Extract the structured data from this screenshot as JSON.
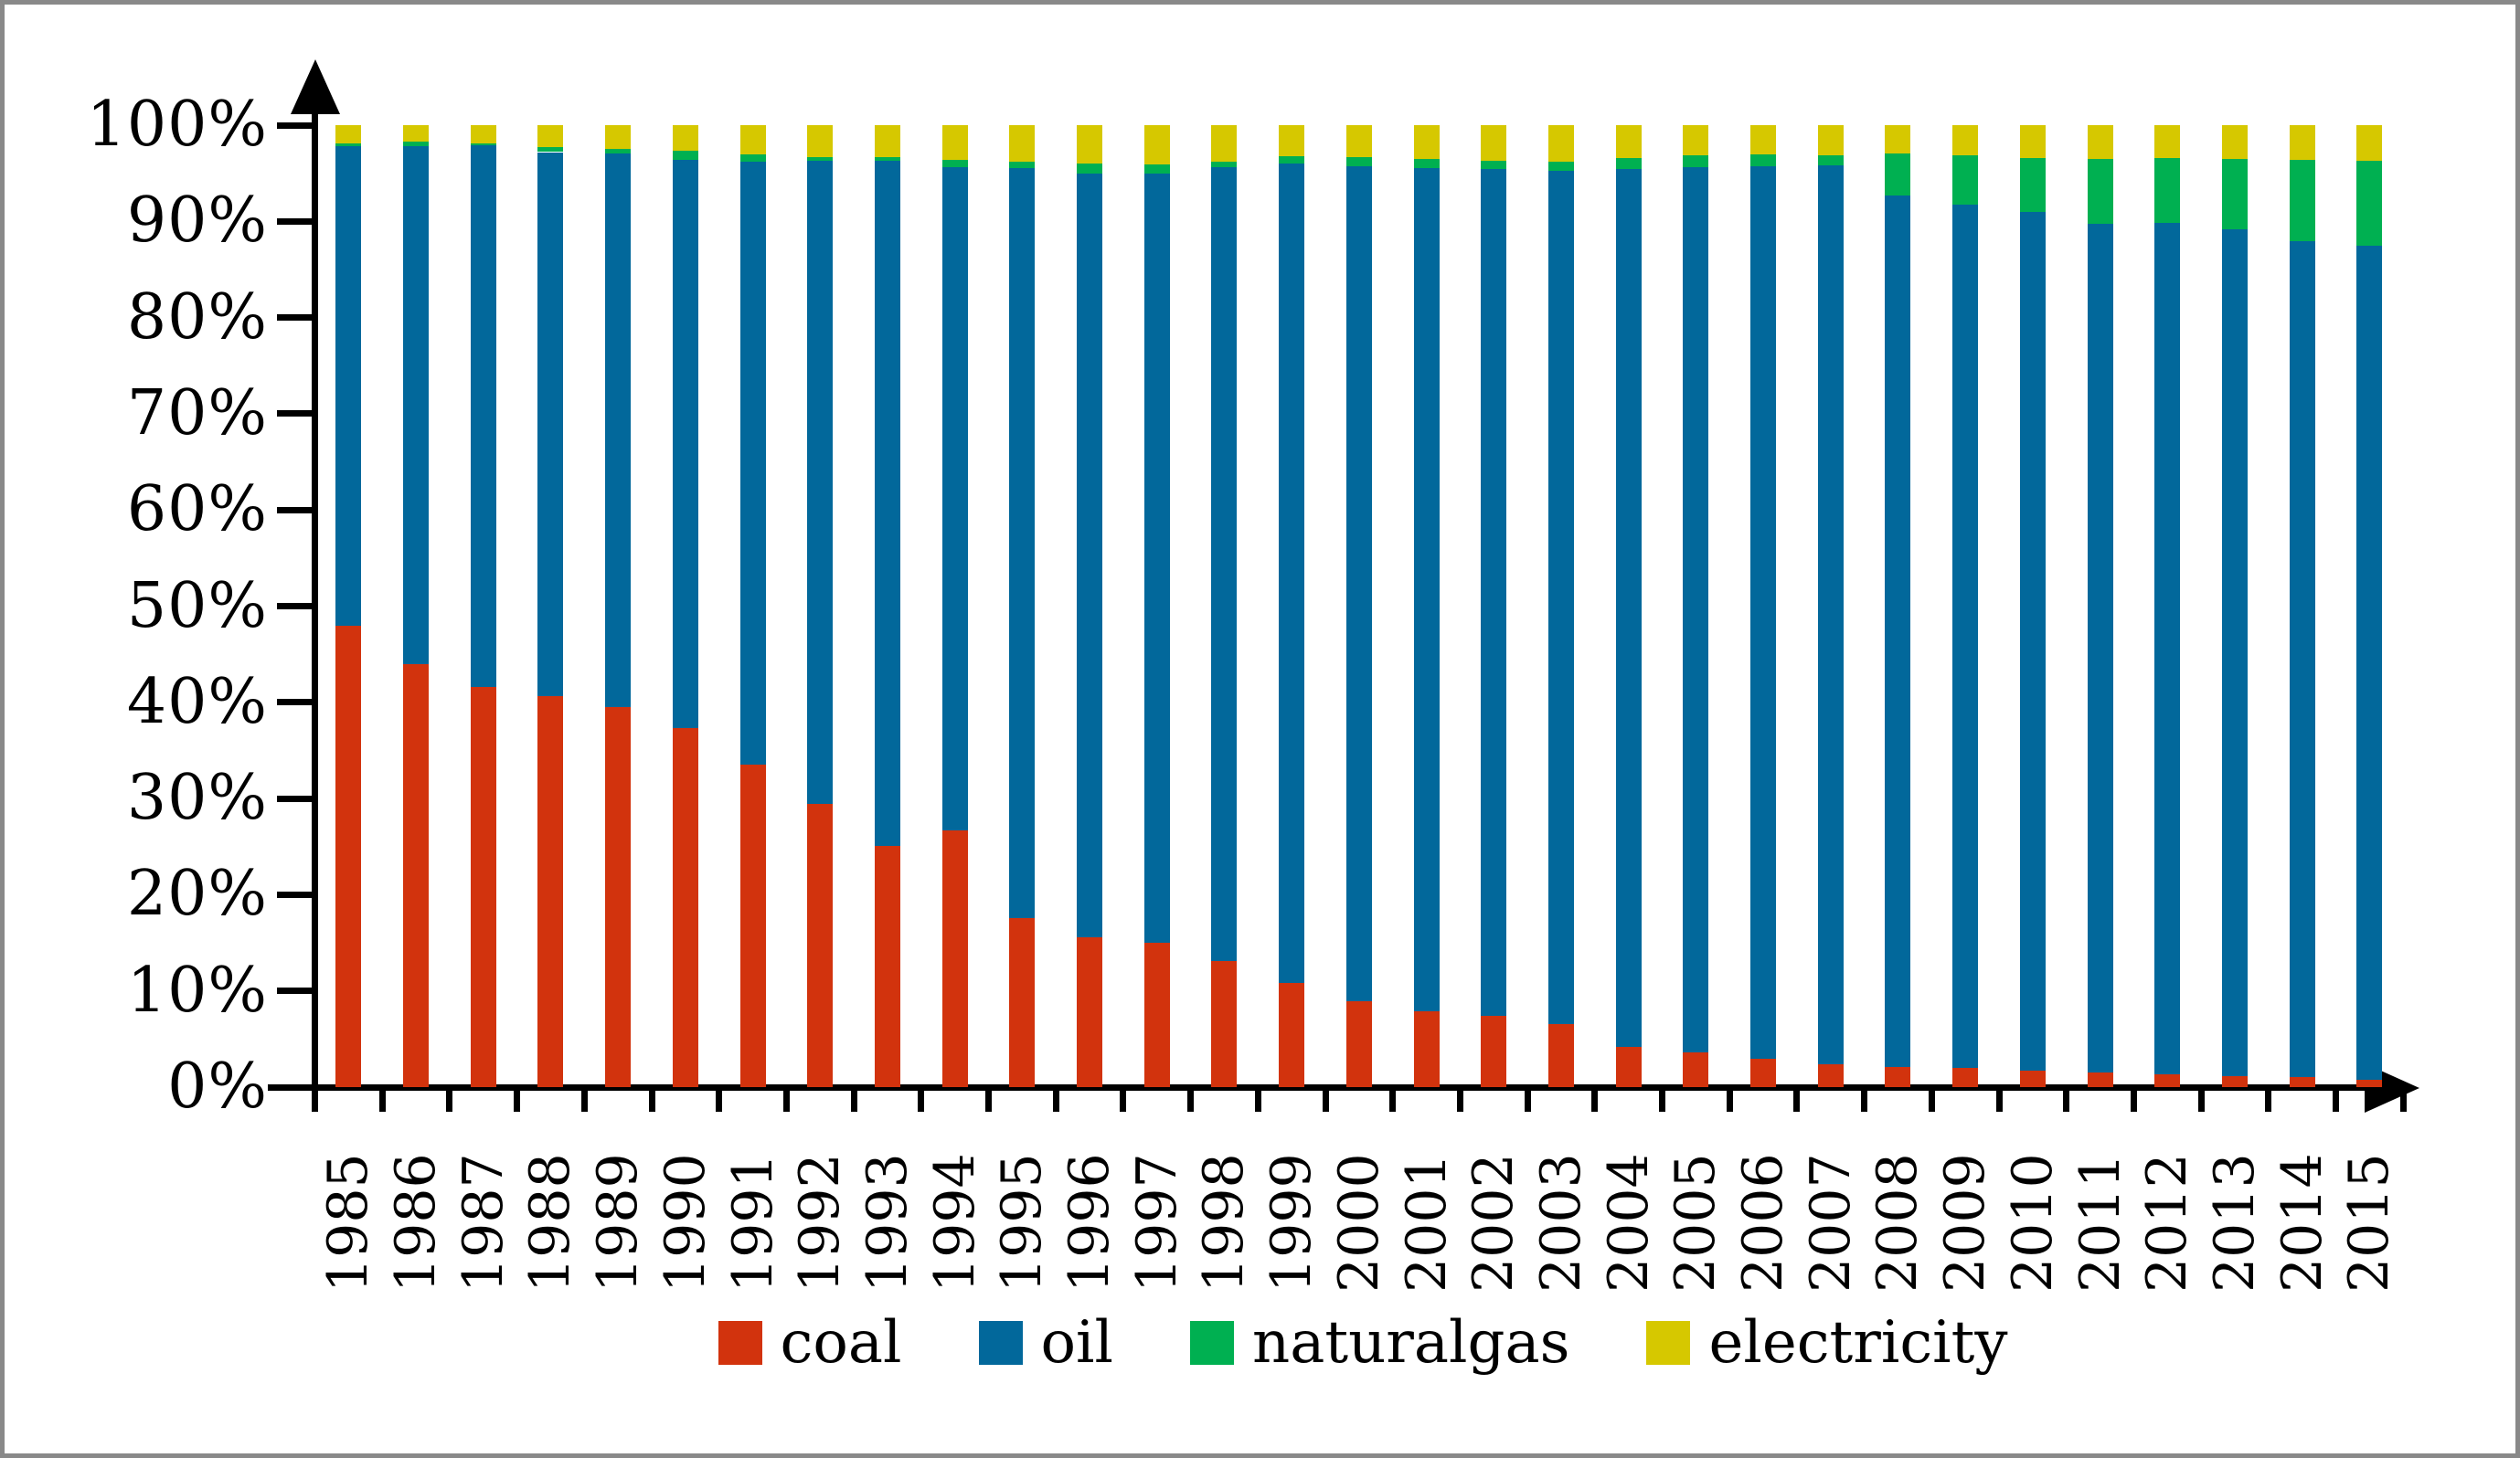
{
  "chart_data": {
    "type": "bar",
    "subtype": "stacked-100-percent",
    "title": "",
    "xlabel": "",
    "ylabel": "",
    "grid": false,
    "legend_position": "bottom",
    "y_axis": {
      "min": 0,
      "max": 100,
      "unit": "%",
      "tick_labels": [
        "0%",
        "10%",
        "20%",
        "30%",
        "40%",
        "50%",
        "60%",
        "70%",
        "80%",
        "90%",
        "100%"
      ]
    },
    "categories": [
      "1985",
      "1986",
      "1987",
      "1988",
      "1989",
      "1990",
      "1991",
      "1992",
      "1993",
      "1994",
      "1995",
      "1996",
      "1997",
      "1998",
      "1999",
      "2000",
      "2001",
      "2002",
      "2003",
      "2004",
      "2005",
      "2006",
      "2007",
      "2008",
      "2009",
      "2010",
      "2011",
      "2012",
      "2013",
      "2014",
      "2015"
    ],
    "series": [
      {
        "name": "coal",
        "color": "#d2330d",
        "values": [
          48.0,
          44.0,
          41.6,
          40.6,
          39.5,
          37.3,
          33.5,
          29.4,
          25.1,
          26.7,
          17.6,
          15.6,
          15.0,
          13.1,
          10.8,
          8.9,
          7.9,
          7.4,
          6.6,
          4.2,
          3.6,
          2.9,
          2.4,
          2.1,
          2.0,
          1.7,
          1.5,
          1.3,
          1.1,
          1.0,
          0.8
        ]
      },
      {
        "name": "oil",
        "color": "#02689b",
        "values": [
          49.8,
          53.8,
          56.3,
          56.6,
          57.6,
          59.1,
          62.7,
          66.9,
          71.2,
          68.9,
          77.9,
          79.4,
          80.0,
          82.5,
          85.2,
          86.8,
          87.6,
          88.0,
          88.7,
          91.2,
          92.0,
          92.8,
          93.4,
          90.6,
          89.7,
          89.3,
          88.2,
          88.5,
          88.1,
          86.9,
          86.7
        ]
      },
      {
        "name": "naturalgas",
        "color": "#00b051",
        "values": [
          0.3,
          0.5,
          0.2,
          0.5,
          0.4,
          0.9,
          0.8,
          0.4,
          0.4,
          0.8,
          0.7,
          1.0,
          0.9,
          0.6,
          0.8,
          1.0,
          1.0,
          0.9,
          0.9,
          1.2,
          1.3,
          1.3,
          1.1,
          4.4,
          5.2,
          5.6,
          6.8,
          6.8,
          7.3,
          8.5,
          8.8
        ]
      },
      {
        "name": "electricity",
        "color": "#d6c800",
        "values": [
          1.9,
          1.7,
          1.9,
          2.3,
          2.5,
          2.7,
          3.0,
          3.3,
          3.3,
          3.6,
          3.8,
          4.0,
          4.1,
          3.8,
          3.2,
          3.3,
          3.5,
          3.7,
          3.8,
          3.4,
          3.1,
          3.0,
          3.1,
          2.9,
          3.1,
          3.4,
          3.5,
          3.4,
          3.5,
          3.6,
          3.7
        ]
      }
    ]
  }
}
